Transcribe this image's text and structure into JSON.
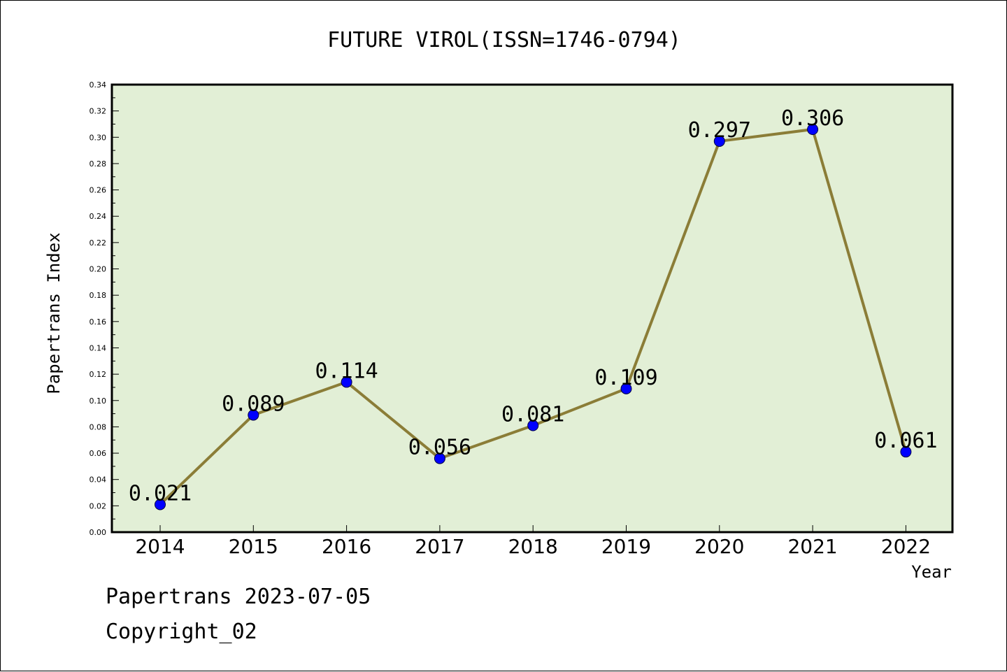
{
  "chart_data": {
    "type": "line",
    "title": "FUTURE VIROL(ISSN=1746-0794)",
    "xlabel": "Year",
    "ylabel": "Papertrans Index",
    "categories": [
      "2014",
      "2015",
      "2016",
      "2017",
      "2018",
      "2019",
      "2020",
      "2021",
      "2022"
    ],
    "values": [
      0.021,
      0.089,
      0.114,
      0.056,
      0.081,
      0.109,
      0.297,
      0.306,
      0.061
    ],
    "data_labels": [
      "0.021",
      "0.089",
      "0.114",
      "0.056",
      "0.081",
      "0.109",
      "0.297",
      "0.306",
      "0.061"
    ],
    "ylim": [
      0,
      0.34
    ],
    "yticks": [
      "0.00",
      "0.02",
      "0.04",
      "0.06",
      "0.08",
      "0.10",
      "0.12",
      "0.14",
      "0.16",
      "0.18",
      "0.20",
      "0.22",
      "0.24",
      "0.26",
      "0.28",
      "0.30",
      "0.32",
      "0.34"
    ],
    "grid": false,
    "colors": {
      "plot_background": "#e2efd6",
      "line": "#8b7d37",
      "marker": "#0000ff"
    }
  },
  "footer": {
    "line1": "Papertrans 2023-07-05",
    "line2": "Copyright_02"
  }
}
